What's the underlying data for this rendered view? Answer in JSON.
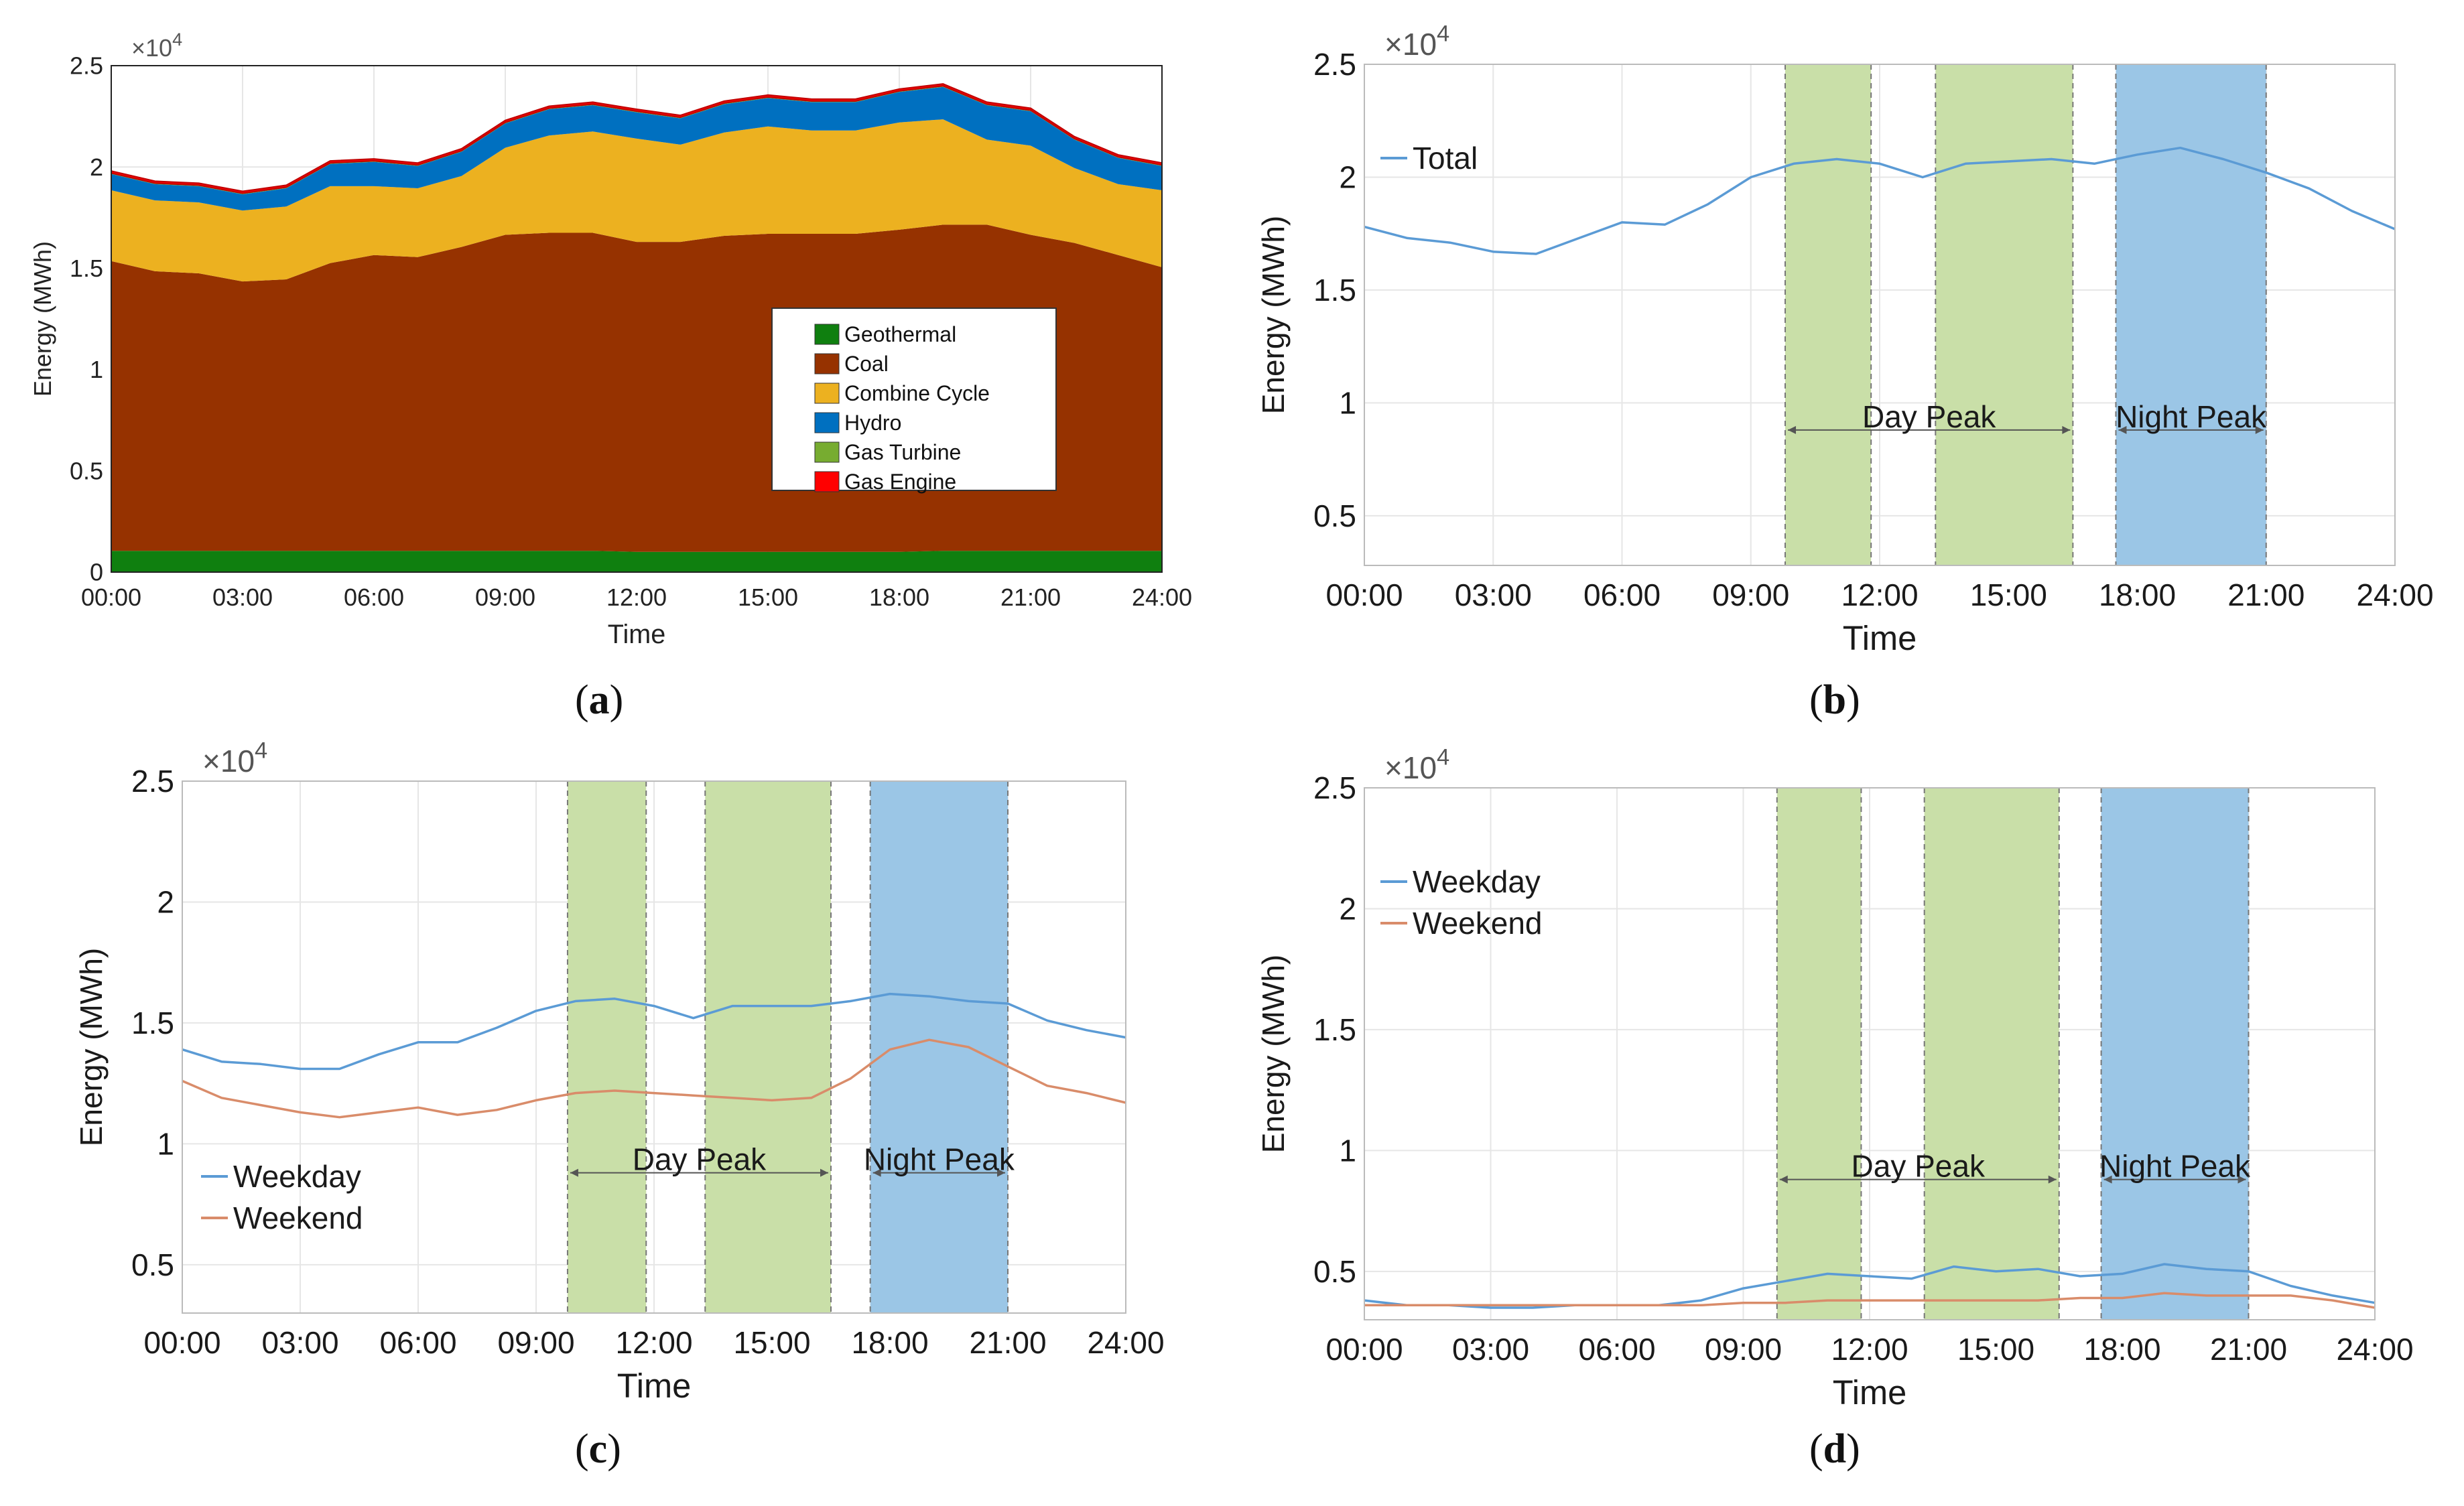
{
  "chart_data": [
    {
      "id": "a",
      "caption": "a",
      "type": "area",
      "stacked": true,
      "title": "",
      "xlabel": "Time",
      "ylabel": "Energy (MWh)",
      "ylim": [
        0,
        25000
      ],
      "y_exponent_label": "×10",
      "y_exponent_power": "4",
      "yticks": [
        0,
        0.5,
        1,
        1.5,
        2,
        2.5
      ],
      "ytick_labels": [
        "0",
        "0.5",
        "1",
        "1.5",
        "2",
        "2.5"
      ],
      "xticks": [
        "00:00",
        "03:00",
        "06:00",
        "09:00",
        "12:00",
        "15:00",
        "18:00",
        "21:00",
        "24:00"
      ],
      "grid": true,
      "legend_position": "center-right",
      "x_hours": [
        0,
        1,
        2,
        3,
        4,
        5,
        6,
        7,
        8,
        9,
        10,
        11,
        12,
        13,
        14,
        15,
        16,
        17,
        18,
        19,
        20,
        21,
        22,
        23,
        24
      ],
      "series": [
        {
          "name": "Geothermal",
          "color": "#0f7f0f",
          "values": [
            1050,
            1050,
            1050,
            1050,
            1050,
            1050,
            1050,
            1050,
            1050,
            1050,
            1050,
            1050,
            1000,
            1000,
            1000,
            1000,
            1000,
            1000,
            1000,
            1050,
            1050,
            1050,
            1050,
            1050,
            1050
          ]
        },
        {
          "name": "Coal",
          "color": "#963200",
          "values": [
            14300,
            13800,
            13700,
            13300,
            13400,
            14200,
            14600,
            14500,
            15000,
            15600,
            15700,
            15700,
            15300,
            15300,
            15600,
            15700,
            15700,
            15700,
            15900,
            16100,
            16100,
            15600,
            15200,
            14600,
            14000
          ]
        },
        {
          "name": "Combine Cycle",
          "color": "#ecb120",
          "values": [
            3500,
            3500,
            3500,
            3500,
            3600,
            3800,
            3400,
            3400,
            3500,
            4300,
            4800,
            5000,
            5100,
            4800,
            5100,
            5300,
            5100,
            5100,
            5300,
            5200,
            4200,
            4400,
            3700,
            3500,
            3800
          ]
        },
        {
          "name": "Hydro",
          "color": "#0070c0",
          "values": [
            800,
            800,
            800,
            800,
            900,
            1100,
            1200,
            1100,
            1200,
            1200,
            1300,
            1300,
            1300,
            1300,
            1400,
            1400,
            1400,
            1400,
            1500,
            1600,
            1700,
            1700,
            1400,
            1300,
            1200
          ]
        },
        {
          "name": "Gas Turbine",
          "color": "#77ac30",
          "values": [
            50,
            50,
            50,
            50,
            50,
            50,
            50,
            50,
            50,
            50,
            50,
            50,
            50,
            50,
            50,
            50,
            50,
            50,
            50,
            50,
            50,
            50,
            50,
            50,
            50
          ]
        },
        {
          "name": "Gas Engine",
          "color": "#ff0000",
          "values": [
            100,
            100,
            100,
            100,
            100,
            100,
            100,
            100,
            100,
            100,
            100,
            100,
            100,
            100,
            100,
            100,
            100,
            100,
            100,
            100,
            100,
            100,
            100,
            100,
            100
          ]
        }
      ]
    },
    {
      "id": "b",
      "caption": "b",
      "type": "line",
      "title": "",
      "xlabel": "Time",
      "ylabel": "Energy (MWh)",
      "ylim": [
        2800,
        25000
      ],
      "y_exponent_label": "×10",
      "y_exponent_power": "4",
      "yticks": [
        0.5,
        1,
        1.5,
        2,
        2.5
      ],
      "ytick_labels": [
        "0.5",
        "1",
        "1.5",
        "2",
        "2.5"
      ],
      "xticks": [
        "00:00",
        "03:00",
        "06:00",
        "09:00",
        "12:00",
        "15:00",
        "18:00",
        "21:00",
        "24:00"
      ],
      "grid": true,
      "legend_position": "none",
      "x_hours": [
        0,
        1,
        2,
        3,
        4,
        5,
        6,
        7,
        8,
        9,
        10,
        11,
        12,
        13,
        14,
        15,
        16,
        17,
        18,
        19,
        20,
        21,
        22,
        23,
        24
      ],
      "bands": [
        {
          "from": 9.8,
          "to": 11.8,
          "color": "#c9dfa8"
        },
        {
          "from": 13.3,
          "to": 16.5,
          "color": "#c9dfa8"
        },
        {
          "from": 17.5,
          "to": 21.0,
          "color": "#9bc6e6"
        }
      ],
      "annotations": [
        {
          "label_part1": "Day ",
          "label_part2": "Peak",
          "from": 9.8,
          "to": 16.5,
          "y": 8800
        },
        {
          "label_part1": "Night ",
          "label_part2": "Peak",
          "from": 17.5,
          "to": 21.0,
          "y": 8800
        }
      ],
      "series": [
        {
          "name": "Total",
          "color": "#5b9bd5",
          "values": [
            17800,
            17300,
            17100,
            16700,
            16600,
            17300,
            18000,
            17900,
            18800,
            20000,
            20600,
            20800,
            20600,
            20000,
            20600,
            20700,
            20800,
            20600,
            21000,
            21300,
            20800,
            20200,
            19500,
            18500,
            17700
          ]
        }
      ]
    },
    {
      "id": "c",
      "caption": "c",
      "type": "line",
      "title": "",
      "xlabel": "Time",
      "ylabel": "Energy (MWh)",
      "ylim": [
        3000,
        25000
      ],
      "y_exponent_label": "×10",
      "y_exponent_power": "4",
      "yticks": [
        0.5,
        1,
        1.5,
        2,
        2.5
      ],
      "ytick_labels": [
        "0.5",
        "1",
        "1.5",
        "2",
        "2.5"
      ],
      "xticks": [
        "00:00",
        "03:00",
        "06:00",
        "09:00",
        "12:00",
        "15:00",
        "18:00",
        "21:00",
        "24:00"
      ],
      "grid": true,
      "legend_position": "bottom-left",
      "x_hours": [
        0,
        1,
        2,
        3,
        4,
        5,
        6,
        7,
        8,
        9,
        10,
        11,
        12,
        13,
        14,
        15,
        16,
        17,
        18,
        19,
        20,
        21,
        22,
        23,
        24
      ],
      "bands": [
        {
          "from": 9.8,
          "to": 11.8,
          "color": "#c9dfa8"
        },
        {
          "from": 13.3,
          "to": 16.5,
          "color": "#c9dfa8"
        },
        {
          "from": 17.5,
          "to": 21.0,
          "color": "#9bc6e6"
        }
      ],
      "annotations": [
        {
          "label_part1": "Day ",
          "label_part2": "Peak",
          "from": 9.8,
          "to": 16.5,
          "y": 8800
        },
        {
          "label_part1": "Night ",
          "label_part2": "Peak",
          "from": 17.5,
          "to": 21.0,
          "y": 8800
        }
      ],
      "series": [
        {
          "name": "Weekday",
          "color": "#5b9bd5",
          "values": [
            13900,
            13400,
            13300,
            13100,
            13100,
            13700,
            14200,
            14200,
            14800,
            15500,
            15900,
            16000,
            15700,
            15200,
            15700,
            15700,
            15700,
            15900,
            16200,
            16100,
            15900,
            15800,
            15100,
            14700,
            14400
          ]
        },
        {
          "name": "Weekend",
          "color": "#d98c6a",
          "values": [
            12600,
            11900,
            11600,
            11300,
            11100,
            11300,
            11500,
            11200,
            11400,
            11800,
            12100,
            12200,
            12100,
            12000,
            11900,
            11800,
            11900,
            12700,
            13900,
            14300,
            14000,
            13200,
            12400,
            12100,
            11700
          ]
        }
      ]
    },
    {
      "id": "d",
      "caption": "d",
      "type": "line",
      "title": "",
      "xlabel": "Time",
      "ylabel": "Energy (MWh)",
      "ylim": [
        3000,
        25000
      ],
      "y_exponent_label": "×10",
      "y_exponent_power": "4",
      "yticks": [
        0.5,
        1,
        1.5,
        2,
        2.5
      ],
      "ytick_labels": [
        "0.5",
        "1",
        "1.5",
        "2",
        "2.5"
      ],
      "xticks": [
        "00:00",
        "03:00",
        "06:00",
        "09:00",
        "12:00",
        "15:00",
        "18:00",
        "21:00",
        "24:00"
      ],
      "grid": true,
      "legend_position": "top-left",
      "x_hours": [
        0,
        1,
        2,
        3,
        4,
        5,
        6,
        7,
        8,
        9,
        10,
        11,
        12,
        13,
        14,
        15,
        16,
        17,
        18,
        19,
        20,
        21,
        22,
        23,
        24
      ],
      "bands": [
        {
          "from": 9.8,
          "to": 11.8,
          "color": "#c9dfa8"
        },
        {
          "from": 13.3,
          "to": 16.5,
          "color": "#c9dfa8"
        },
        {
          "from": 17.5,
          "to": 21.0,
          "color": "#9bc6e6"
        }
      ],
      "annotations": [
        {
          "label_part1": "Day ",
          "label_part2": "Peak",
          "from": 9.8,
          "to": 16.5,
          "y": 8800
        },
        {
          "label_part1": "Night ",
          "label_part2": "Peak",
          "from": 17.5,
          "to": 21.0,
          "y": 8800
        }
      ],
      "series": [
        {
          "name": "Weekday",
          "color": "#5b9bd5",
          "values": [
            3800,
            3600,
            3600,
            3500,
            3500,
            3600,
            3600,
            3600,
            3800,
            4300,
            4600,
            4900,
            4800,
            4700,
            5200,
            5000,
            5100,
            4800,
            4900,
            5300,
            5100,
            5000,
            4400,
            4000,
            3700
          ]
        },
        {
          "name": "Weekend",
          "color": "#d98c6a",
          "values": [
            3600,
            3600,
            3600,
            3600,
            3600,
            3600,
            3600,
            3600,
            3600,
            3700,
            3700,
            3800,
            3800,
            3800,
            3800,
            3800,
            3800,
            3900,
            3900,
            4100,
            4000,
            4000,
            4000,
            3800,
            3500
          ]
        }
      ]
    }
  ]
}
